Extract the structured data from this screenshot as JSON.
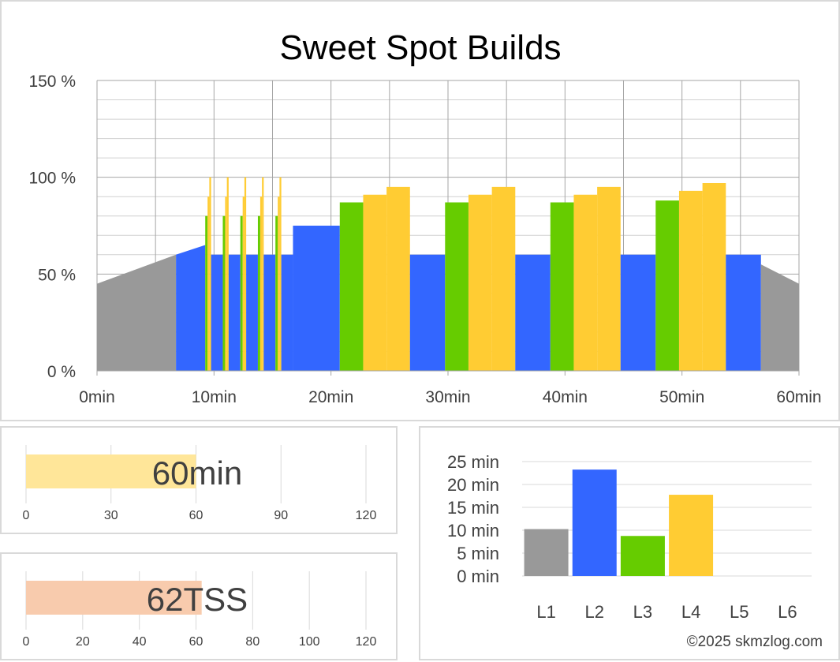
{
  "colors": {
    "L1": "#999999",
    "L2": "#3366ff",
    "L3": "#66cc00",
    "L4": "#ffcc33",
    "duration_bar": "#ffe699",
    "tss_bar": "#f8cbad",
    "grid": "#bfbfbf"
  },
  "chart_data": [
    {
      "type": "area",
      "title": "Sweet Spot Builds",
      "xlabel": "",
      "ylabel": "",
      "x_unit": "min",
      "y_unit": "%",
      "xlim": [
        0,
        60
      ],
      "ylim": [
        0,
        150
      ],
      "x_ticks": [
        0,
        10,
        20,
        30,
        40,
        50,
        60
      ],
      "x_tick_labels": [
        "0min",
        "10min",
        "20min",
        "30min",
        "40min",
        "50min",
        "60min"
      ],
      "y_ticks": [
        0,
        50,
        100,
        150
      ],
      "y_tick_labels": [
        "0 %",
        "50 %",
        "100 %",
        "150 %"
      ],
      "grid": true,
      "segments": [
        {
          "start": 0,
          "end": 6.75,
          "zone": "L1",
          "from": 45,
          "to": 60
        },
        {
          "start": 6.75,
          "end": 9.25,
          "zone": "L2",
          "from": 60,
          "to": 65
        },
        {
          "start": 9.25,
          "end": 9.45,
          "zone": "L3",
          "from": 80,
          "to": 80
        },
        {
          "start": 9.45,
          "end": 9.6,
          "zone": "L4",
          "from": 90,
          "to": 90
        },
        {
          "start": 9.6,
          "end": 9.75,
          "zone": "L4",
          "from": 100,
          "to": 100
        },
        {
          "start": 9.75,
          "end": 10.75,
          "zone": "L2",
          "from": 60,
          "to": 60
        },
        {
          "start": 10.75,
          "end": 10.95,
          "zone": "L3",
          "from": 80,
          "to": 80
        },
        {
          "start": 10.95,
          "end": 11.1,
          "zone": "L4",
          "from": 90,
          "to": 90
        },
        {
          "start": 11.1,
          "end": 11.25,
          "zone": "L4",
          "from": 100,
          "to": 100
        },
        {
          "start": 11.25,
          "end": 12.25,
          "zone": "L2",
          "from": 60,
          "to": 60
        },
        {
          "start": 12.25,
          "end": 12.45,
          "zone": "L3",
          "from": 80,
          "to": 80
        },
        {
          "start": 12.45,
          "end": 12.6,
          "zone": "L4",
          "from": 90,
          "to": 90
        },
        {
          "start": 12.6,
          "end": 12.75,
          "zone": "L4",
          "from": 100,
          "to": 100
        },
        {
          "start": 12.75,
          "end": 13.75,
          "zone": "L2",
          "from": 60,
          "to": 60
        },
        {
          "start": 13.75,
          "end": 13.95,
          "zone": "L3",
          "from": 80,
          "to": 80
        },
        {
          "start": 13.95,
          "end": 14.1,
          "zone": "L4",
          "from": 90,
          "to": 90
        },
        {
          "start": 14.1,
          "end": 14.25,
          "zone": "L4",
          "from": 100,
          "to": 100
        },
        {
          "start": 14.25,
          "end": 15.25,
          "zone": "L2",
          "from": 60,
          "to": 60
        },
        {
          "start": 15.25,
          "end": 15.45,
          "zone": "L3",
          "from": 80,
          "to": 80
        },
        {
          "start": 15.45,
          "end": 15.6,
          "zone": "L4",
          "from": 90,
          "to": 90
        },
        {
          "start": 15.6,
          "end": 15.75,
          "zone": "L4",
          "from": 100,
          "to": 100
        },
        {
          "start": 15.75,
          "end": 16.75,
          "zone": "L2",
          "from": 60,
          "to": 60
        },
        {
          "start": 16.75,
          "end": 20.75,
          "zone": "L2",
          "from": 75,
          "to": 75
        },
        {
          "start": 20.75,
          "end": 22.75,
          "zone": "L3",
          "from": 87,
          "to": 87
        },
        {
          "start": 22.75,
          "end": 24.75,
          "zone": "L4",
          "from": 91,
          "to": 91
        },
        {
          "start": 24.75,
          "end": 26.75,
          "zone": "L4",
          "from": 95,
          "to": 95
        },
        {
          "start": 26.75,
          "end": 29.75,
          "zone": "L2",
          "from": 60,
          "to": 60
        },
        {
          "start": 29.75,
          "end": 31.75,
          "zone": "L3",
          "from": 87,
          "to": 87
        },
        {
          "start": 31.75,
          "end": 33.75,
          "zone": "L4",
          "from": 91,
          "to": 91
        },
        {
          "start": 33.75,
          "end": 35.75,
          "zone": "L4",
          "from": 95,
          "to": 95
        },
        {
          "start": 35.75,
          "end": 38.75,
          "zone": "L2",
          "from": 60,
          "to": 60
        },
        {
          "start": 38.75,
          "end": 40.75,
          "zone": "L3",
          "from": 87,
          "to": 87
        },
        {
          "start": 40.75,
          "end": 42.75,
          "zone": "L4",
          "from": 91,
          "to": 91
        },
        {
          "start": 42.75,
          "end": 44.75,
          "zone": "L4",
          "from": 95,
          "to": 95
        },
        {
          "start": 44.75,
          "end": 47.75,
          "zone": "L2",
          "from": 60,
          "to": 60
        },
        {
          "start": 47.75,
          "end": 49.75,
          "zone": "L3",
          "from": 88,
          "to": 88
        },
        {
          "start": 49.75,
          "end": 51.75,
          "zone": "L4",
          "from": 93,
          "to": 93
        },
        {
          "start": 51.75,
          "end": 53.75,
          "zone": "L4",
          "from": 97,
          "to": 97
        },
        {
          "start": 53.75,
          "end": 56.75,
          "zone": "L2",
          "from": 60,
          "to": 60
        },
        {
          "start": 56.75,
          "end": 60,
          "zone": "L1",
          "from": 55,
          "to": 45
        }
      ]
    },
    {
      "type": "bar",
      "orientation": "horizontal",
      "value": 60,
      "label": "60min",
      "xlim": [
        0,
        120
      ],
      "x_ticks": [
        0,
        30,
        60,
        90,
        120
      ]
    },
    {
      "type": "bar",
      "orientation": "horizontal",
      "value": 62,
      "label": "62TSS",
      "xlim": [
        0,
        120
      ],
      "x_ticks": [
        0,
        20,
        40,
        60,
        80,
        100,
        120
      ]
    },
    {
      "type": "bar",
      "categories": [
        "L1",
        "L2",
        "L3",
        "L4",
        "L5",
        "L6"
      ],
      "values": [
        10.25,
        23.25,
        8.75,
        17.75,
        0,
        0
      ],
      "ylim": [
        0,
        25
      ],
      "y_ticks": [
        0,
        5,
        10,
        15,
        20,
        25
      ],
      "y_tick_labels": [
        "0 min",
        "5 min",
        "10 min",
        "15 min",
        "20 min",
        "25 min"
      ],
      "grid": true
    }
  ],
  "credit": "©2025 skmzlog.com"
}
